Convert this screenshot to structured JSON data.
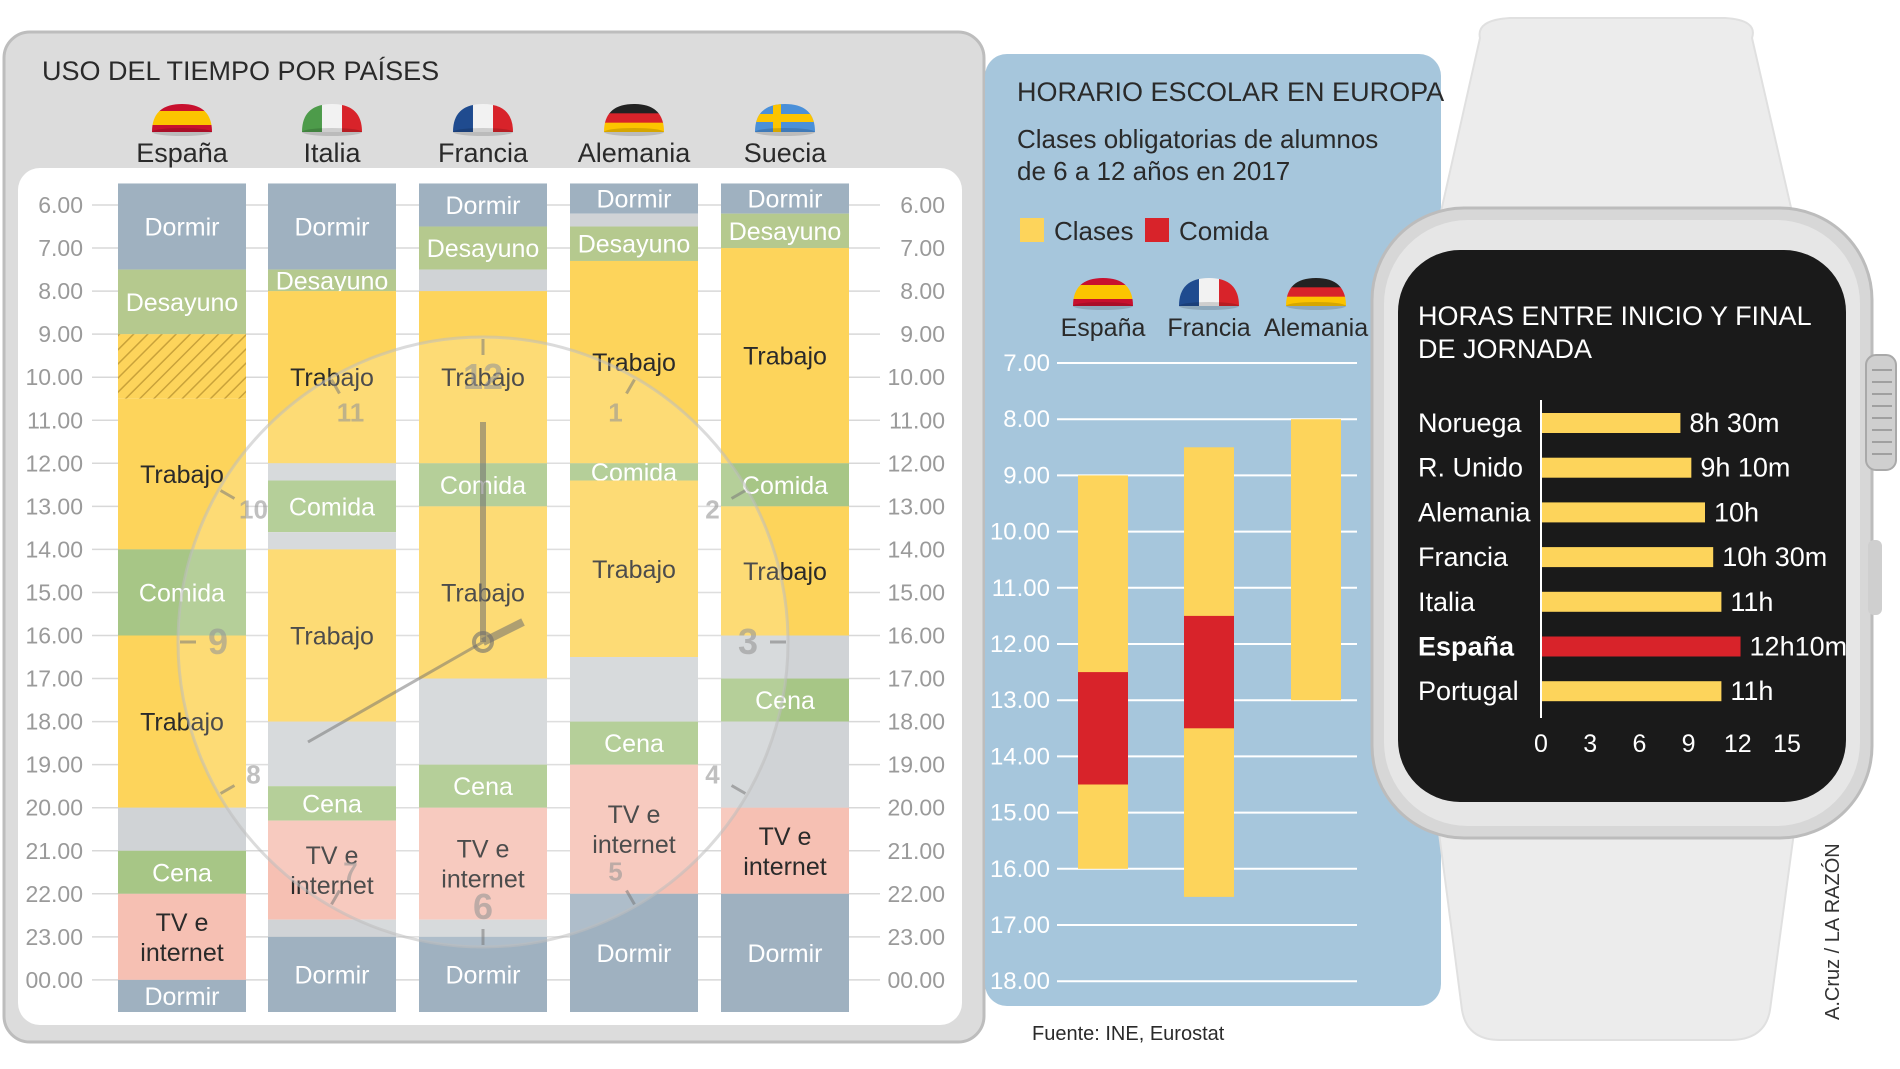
{
  "colors": {
    "panel_bg": "#dcdcdc",
    "panel_border": "#bdbdbd",
    "inner_bg": "#ffffff",
    "sleep": "#9fb1c0",
    "breakfast": "#b5c98e",
    "work": "#fdd45b",
    "meal": "#a7c686",
    "tv": "#f6c0b3",
    "free": "#d0d3d6",
    "school_bg": "#a6c6dc",
    "class": "#fdd45b",
    "lunch": "#d8232a",
    "watch_screen": "#1a1a1a",
    "bar_yellow": "#fdd45b",
    "bar_red": "#d8232a"
  },
  "left_panel": {
    "title": "USO DEL TIEMPO POR PAÍSES",
    "countries": [
      "España",
      "Italia",
      "Francia",
      "Alemania",
      "Suecia"
    ],
    "hour_labels": [
      "6.00",
      "7.00",
      "8.00",
      "9.00",
      "10.00",
      "11.00",
      "12.00",
      "13.00",
      "14.00",
      "15.00",
      "16.00",
      "17.00",
      "18.00",
      "19.00",
      "20.00",
      "21.00",
      "22.00",
      "23.00",
      "00.00"
    ],
    "clock_numbers": [
      "12",
      "1",
      "2",
      "3",
      "4",
      "5",
      "6",
      "7",
      "8",
      "9",
      "10",
      "11"
    ]
  },
  "chart_data": [
    {
      "type": "table",
      "title": "USO DEL TIEMPO POR PAÍSES",
      "y_unit": "hour of day",
      "ylim": [
        6,
        24.5
      ],
      "columns": [
        {
          "country": "España",
          "blocks": [
            {
              "label": "Dormir",
              "kind": "sleep",
              "start": 5.5,
              "end": 7.5
            },
            {
              "label": "Desayuno",
              "kind": "breakfast",
              "start": 7.5,
              "end": 9.0
            },
            {
              "label": "",
              "kind": "hatched",
              "start": 9.0,
              "end": 10.5
            },
            {
              "label": "Trabajo",
              "kind": "work",
              "start": 10.5,
              "end": 14.0
            },
            {
              "label": "Comida",
              "kind": "meal",
              "start": 14.0,
              "end": 16.0
            },
            {
              "label": "Trabajo",
              "kind": "work",
              "start": 16.0,
              "end": 20.0
            },
            {
              "label": "",
              "kind": "free",
              "start": 20.0,
              "end": 21.0
            },
            {
              "label": "Cena",
              "kind": "meal",
              "start": 21.0,
              "end": 22.0
            },
            {
              "label": "TV e internet",
              "kind": "tv",
              "start": 22.0,
              "end": 24.0
            },
            {
              "label": "Dormir",
              "kind": "sleep",
              "start": 24.0,
              "end": 24.8
            }
          ]
        },
        {
          "country": "Italia",
          "blocks": [
            {
              "label": "Dormir",
              "kind": "sleep",
              "start": 5.5,
              "end": 7.5
            },
            {
              "label": "Desayuno",
              "kind": "breakfast",
              "start": 7.5,
              "end": 8.0
            },
            {
              "label": "Trabajo",
              "kind": "work",
              "start": 8.0,
              "end": 12.0
            },
            {
              "label": "",
              "kind": "free",
              "start": 12.0,
              "end": 12.4
            },
            {
              "label": "Comida",
              "kind": "meal",
              "start": 12.4,
              "end": 13.6
            },
            {
              "label": "",
              "kind": "free",
              "start": 13.6,
              "end": 14.0
            },
            {
              "label": "Trabajo",
              "kind": "work",
              "start": 14.0,
              "end": 18.0
            },
            {
              "label": "",
              "kind": "free",
              "start": 18.0,
              "end": 19.5
            },
            {
              "label": "Cena",
              "kind": "meal",
              "start": 19.5,
              "end": 20.3
            },
            {
              "label": "TV e internet",
              "kind": "tv",
              "start": 20.3,
              "end": 22.6
            },
            {
              "label": "",
              "kind": "free",
              "start": 22.6,
              "end": 23.0
            },
            {
              "label": "Dormir",
              "kind": "sleep",
              "start": 23.0,
              "end": 24.8
            }
          ]
        },
        {
          "country": "Francia",
          "blocks": [
            {
              "label": "Dormir",
              "kind": "sleep",
              "start": 5.5,
              "end": 6.5
            },
            {
              "label": "Desayuno",
              "kind": "breakfast",
              "start": 6.5,
              "end": 7.5
            },
            {
              "label": "",
              "kind": "free",
              "start": 7.5,
              "end": 8.0
            },
            {
              "label": "Trabajo",
              "kind": "work",
              "start": 8.0,
              "end": 12.0
            },
            {
              "label": "Comida",
              "kind": "meal",
              "start": 12.0,
              "end": 13.0
            },
            {
              "label": "Trabajo",
              "kind": "work",
              "start": 13.0,
              "end": 17.0
            },
            {
              "label": "",
              "kind": "free",
              "start": 17.0,
              "end": 19.0
            },
            {
              "label": "Cena",
              "kind": "meal",
              "start": 19.0,
              "end": 20.0
            },
            {
              "label": "TV e internet",
              "kind": "tv",
              "start": 20.0,
              "end": 22.6
            },
            {
              "label": "",
              "kind": "free",
              "start": 22.6,
              "end": 23.0
            },
            {
              "label": "Dormir",
              "kind": "sleep",
              "start": 23.0,
              "end": 24.8
            }
          ]
        },
        {
          "country": "Alemania",
          "blocks": [
            {
              "label": "Dormir",
              "kind": "sleep",
              "start": 5.5,
              "end": 6.2
            },
            {
              "label": "",
              "kind": "free",
              "start": 6.2,
              "end": 6.5
            },
            {
              "label": "Desayuno",
              "kind": "breakfast",
              "start": 6.5,
              "end": 7.3
            },
            {
              "label": "Trabajo",
              "kind": "work",
              "start": 7.3,
              "end": 12.0
            },
            {
              "label": "Comida",
              "kind": "meal",
              "start": 12.0,
              "end": 12.4
            },
            {
              "label": "Trabajo",
              "kind": "work",
              "start": 12.4,
              "end": 16.5
            },
            {
              "label": "",
              "kind": "free",
              "start": 16.5,
              "end": 18.0
            },
            {
              "label": "Cena",
              "kind": "meal",
              "start": 18.0,
              "end": 19.0
            },
            {
              "label": "TV e internet",
              "kind": "tv",
              "start": 19.0,
              "end": 22.0
            },
            {
              "label": "Dormir",
              "kind": "sleep",
              "start": 22.0,
              "end": 24.8
            }
          ]
        },
        {
          "country": "Suecia",
          "blocks": [
            {
              "label": "Dormir",
              "kind": "sleep",
              "start": 5.5,
              "end": 6.2
            },
            {
              "label": "Desayuno",
              "kind": "breakfast",
              "start": 6.2,
              "end": 7.0
            },
            {
              "label": "Trabajo",
              "kind": "work",
              "start": 7.0,
              "end": 12.0
            },
            {
              "label": "Comida",
              "kind": "meal",
              "start": 12.0,
              "end": 13.0
            },
            {
              "label": "Trabajo",
              "kind": "work",
              "start": 13.0,
              "end": 16.0
            },
            {
              "label": "",
              "kind": "free",
              "start": 16.0,
              "end": 17.0
            },
            {
              "label": "Cena",
              "kind": "meal",
              "start": 17.0,
              "end": 18.0
            },
            {
              "label": "",
              "kind": "free",
              "start": 18.0,
              "end": 20.0
            },
            {
              "label": "TV e internet",
              "kind": "tv",
              "start": 20.0,
              "end": 22.0
            },
            {
              "label": "Dormir",
              "kind": "sleep",
              "start": 22.0,
              "end": 24.8
            }
          ]
        }
      ]
    },
    {
      "type": "bar",
      "title": "HORARIO ESCOLAR EN EUROPA",
      "subtitle": "Clases obligatorias de alumnos de 6 a 12 años en 2017",
      "legend": [
        {
          "name": "Clases",
          "color": "#fdd45b"
        },
        {
          "name": "Comida",
          "color": "#d8232a"
        }
      ],
      "categories": [
        "España",
        "Francia",
        "Alemania"
      ],
      "y_labels": [
        "7.00",
        "8.00",
        "9.00",
        "10.00",
        "11.00",
        "12.00",
        "13.00",
        "14.00",
        "15.00",
        "16.00",
        "17.00",
        "18.00"
      ],
      "ylim": [
        7,
        18
      ],
      "ranges": [
        {
          "country": "España",
          "start": 9.0,
          "end": 16.0,
          "lunch_start": 12.5,
          "lunch_end": 14.5
        },
        {
          "country": "Francia",
          "start": 8.5,
          "end": 16.5,
          "lunch_start": 11.5,
          "lunch_end": 13.5
        },
        {
          "country": "Alemania",
          "start": 8.0,
          "end": 13.0,
          "lunch_start": null,
          "lunch_end": null
        }
      ]
    },
    {
      "type": "bar",
      "orientation": "horizontal",
      "title": "HORAS ENTRE INICIO Y FINAL DE JORNADA",
      "categories": [
        "Noruega",
        "R. Unido",
        "Alemania",
        "Francia",
        "Italia",
        "España",
        "Portugal"
      ],
      "values": [
        8.5,
        9.1667,
        10,
        10.5,
        11,
        12.1667,
        11
      ],
      "value_labels": [
        "8h 30m",
        "9h 10m",
        "10h",
        "10h 30m",
        "11h",
        "12h10m",
        "11h"
      ],
      "highlight": "España",
      "xticks": [
        "0",
        "3",
        "6",
        "9",
        "12",
        "15"
      ],
      "xlim": [
        0,
        15
      ]
    }
  ],
  "school_panel": {
    "source": "Fuente: INE, Eurostat"
  },
  "credit": "A.Cruz / LA RAZÓN"
}
